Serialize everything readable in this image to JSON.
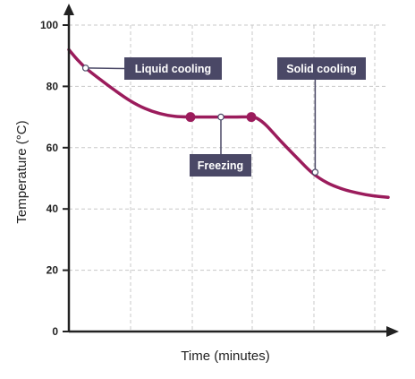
{
  "colors": {
    "curve": "#9b1c5c",
    "callout_bg": "#4a4866",
    "callout_text": "#ffffff",
    "axis": "#222222",
    "grid": "#c8c8c8"
  },
  "chart_data": {
    "type": "line",
    "title": "",
    "xlabel": "Time (minutes)",
    "ylabel": "Temperature (°C)",
    "ylim": [
      0,
      100
    ],
    "yticks": [
      0,
      20,
      40,
      60,
      80,
      100
    ],
    "xlim": [
      0,
      10.5
    ],
    "x_tick_labels_shown": false,
    "grid": true,
    "series": [
      {
        "x": [
          0,
          0.3,
          0.6,
          1.0,
          1.5,
          2.0,
          2.5,
          3.0,
          3.5,
          4.0,
          4.5,
          5.0,
          5.5,
          6.0,
          6.2,
          6.5,
          7.0,
          7.5,
          8.0,
          8.5,
          9.0,
          9.5,
          10.0,
          10.5
        ],
        "y": [
          92,
          88.5,
          85.6,
          82.5,
          78.8,
          75.4,
          72.8,
          71.1,
          70.2,
          70,
          70,
          70,
          70,
          70,
          69.5,
          67.2,
          61.8,
          56.7,
          51.8,
          48.5,
          46.5,
          45.2,
          44.3,
          43.8
        ]
      }
    ],
    "markers": [
      {
        "x": 4.0,
        "y": 70
      },
      {
        "x": 6.0,
        "y": 70
      }
    ],
    "annotations": [
      {
        "text": "Liquid cooling",
        "x": 0.55,
        "y": 86
      },
      {
        "text": "Freezing",
        "x": 5.0,
        "y": 70
      },
      {
        "text": "Solid cooling",
        "x": 8.1,
        "y": 52
      }
    ]
  }
}
